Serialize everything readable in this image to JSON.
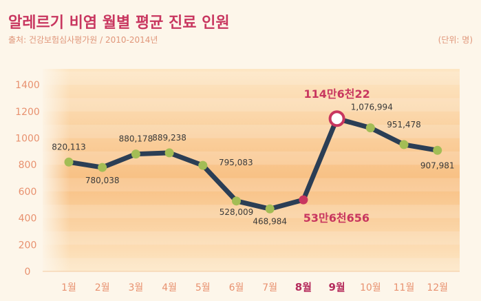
{
  "title": "알레르기 비염 월별 평균 진료 인원",
  "source": "출처: 건강보험심사평가원 / 2010-2014년",
  "unit": "(단위: 명)",
  "chart_data": {
    "type": "line",
    "categories": [
      "1월",
      "2월",
      "3월",
      "4월",
      "5월",
      "6월",
      "7월",
      "8월",
      "9월",
      "10월",
      "11월",
      "12월"
    ],
    "values": [
      820113,
      780038,
      880178,
      889238,
      795083,
      528009,
      468984,
      536656,
      1146022,
      1076994,
      951478,
      907981
    ],
    "data_labels": [
      "820,113",
      "780,038",
      "880,178",
      "889,238",
      "795,083",
      "528,009",
      "468,984",
      "53만6천656",
      "114만6천22",
      "1,076,994",
      "951,478",
      "907,981"
    ],
    "highlight_categories": [
      "8월",
      "9월"
    ],
    "y_ticks": [
      "0",
      "200",
      "400",
      "600",
      "800",
      "1000",
      "1200",
      "1400"
    ],
    "ylim": [
      0,
      1500000
    ],
    "grid": "horizontal bands",
    "colors": {
      "line": "#2b3e55",
      "marker": "#a3bd55",
      "marker_min": "#c8365f",
      "marker_max_ring": "#c8365f",
      "highlight_text": "#c8365f"
    }
  }
}
